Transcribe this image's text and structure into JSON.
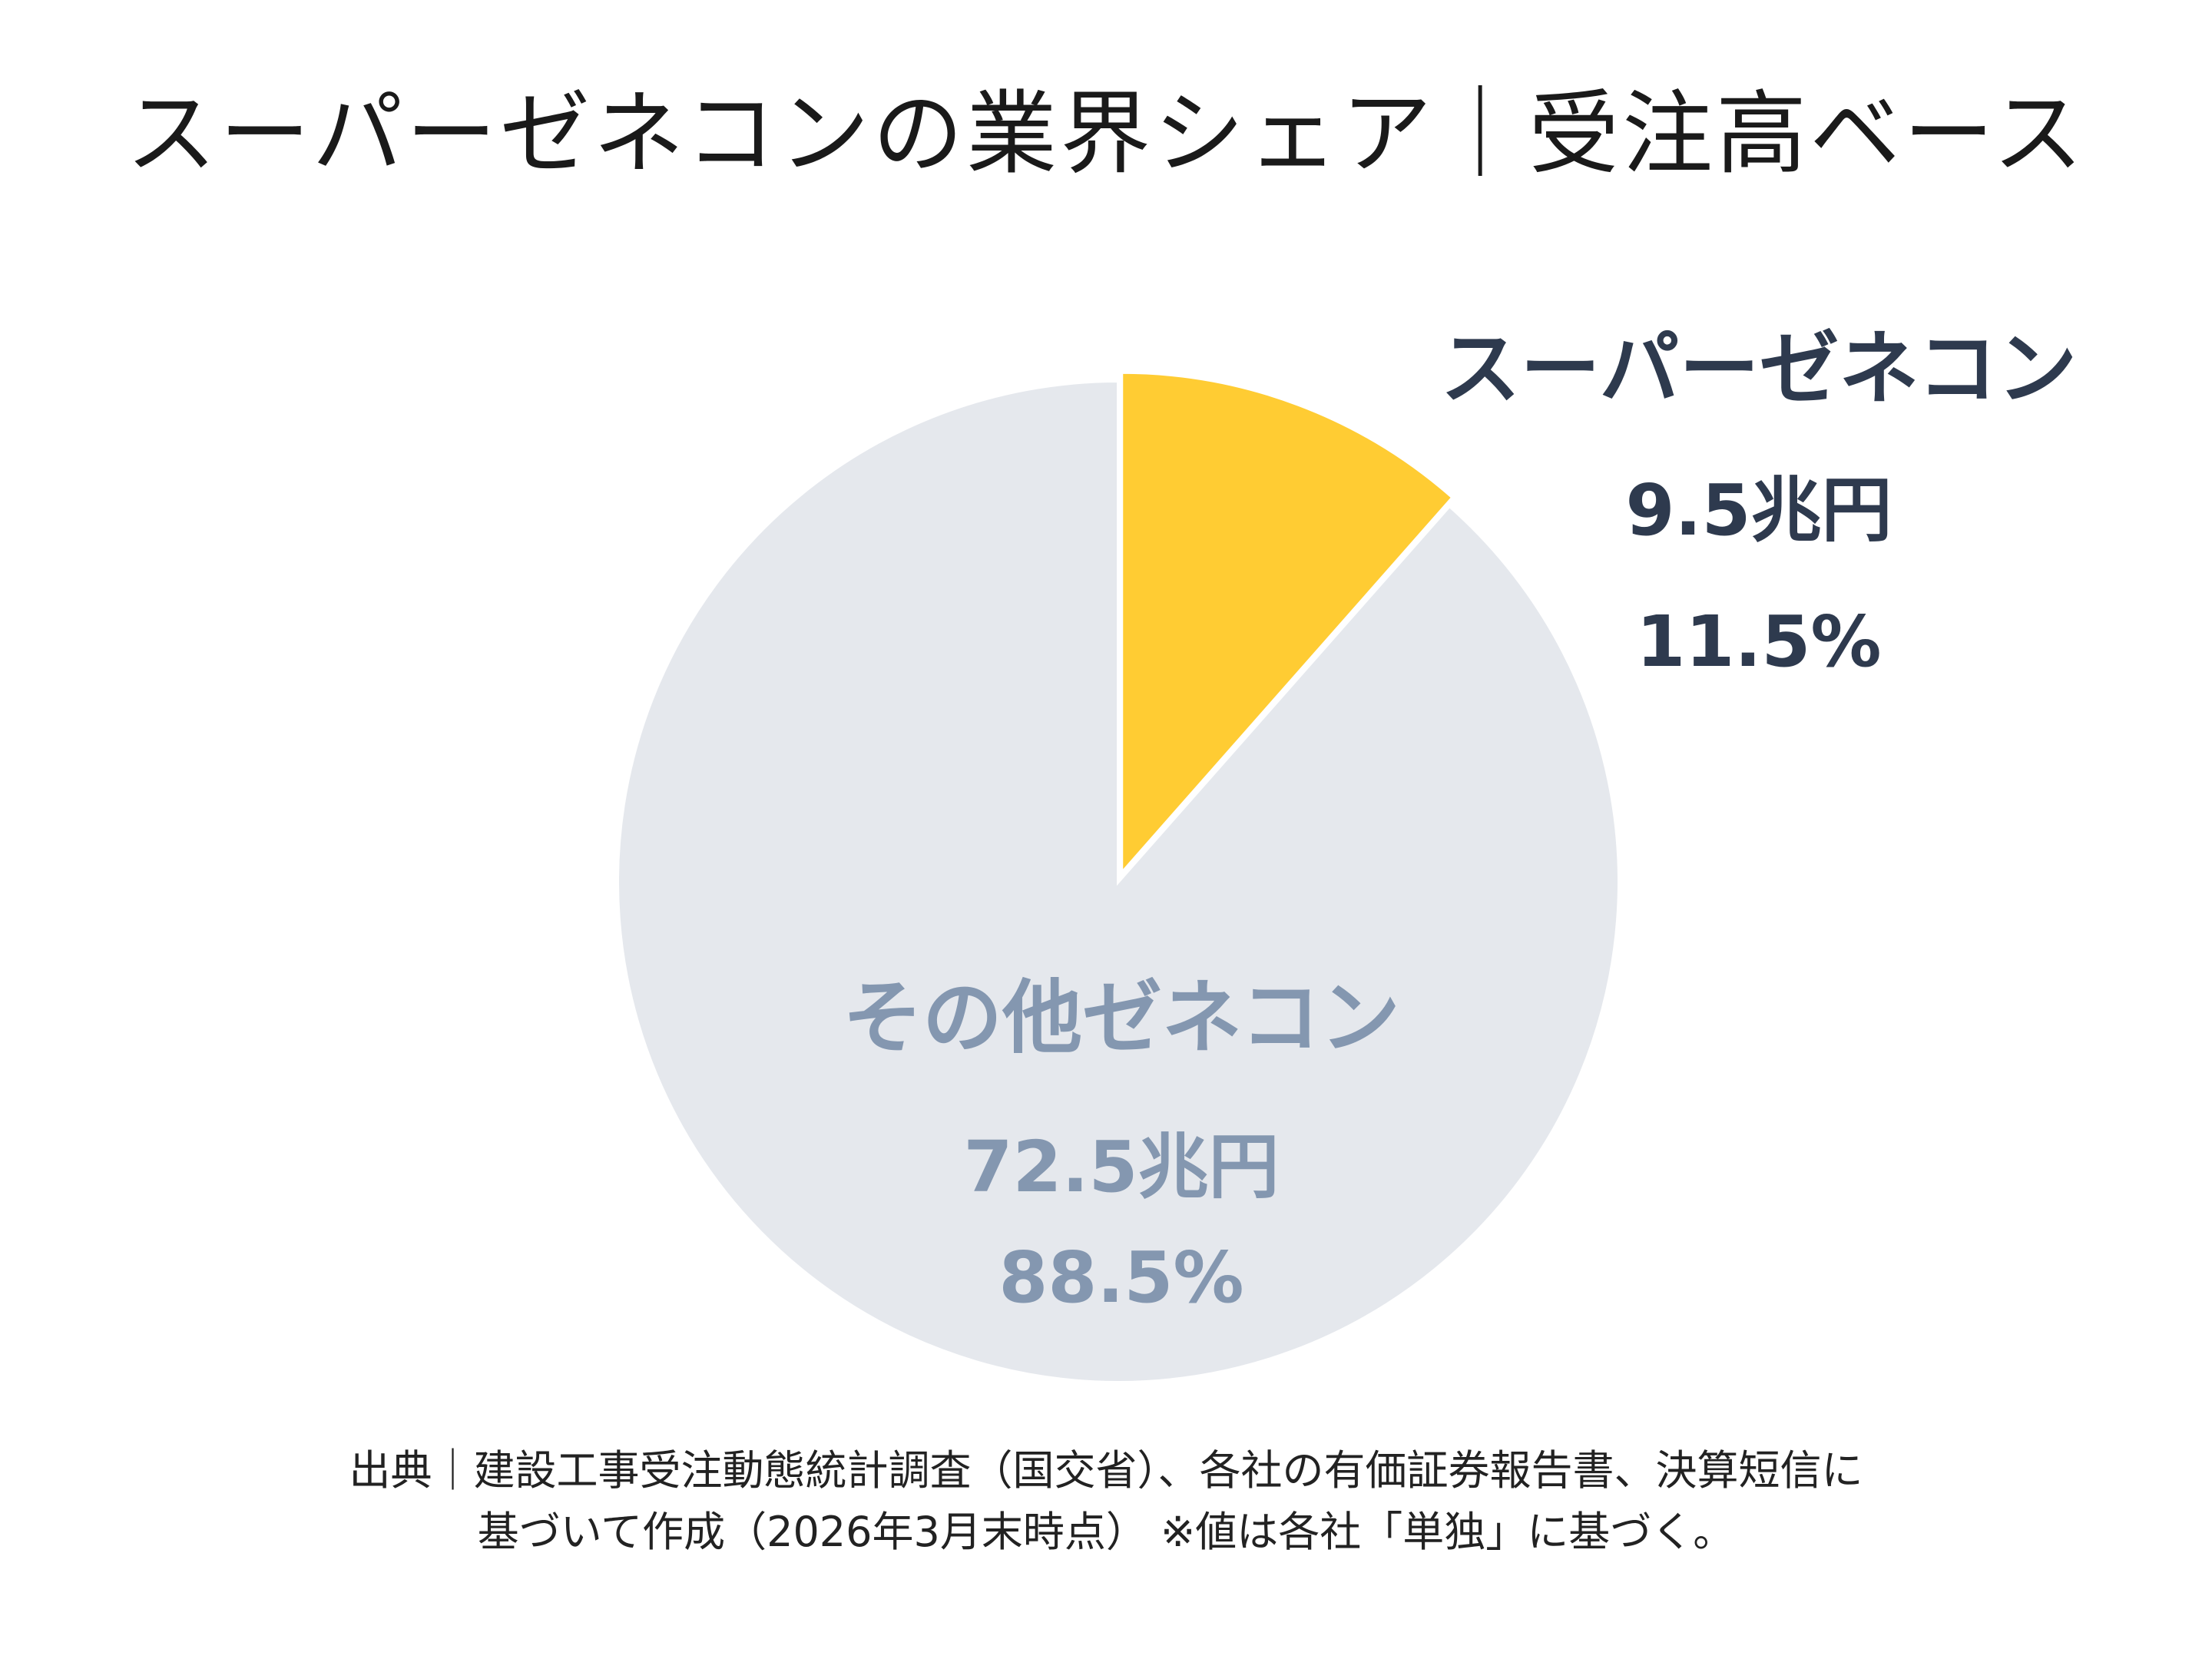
{
  "chart_data": {
    "type": "pie",
    "title": "スーパーゼネコンの業界シェア｜受注高ベース",
    "slices": [
      {
        "name": "スーパーゼネコン",
        "amount_label": "9.5兆円",
        "amount": 9.5,
        "unit": "兆円",
        "percent_label": "11.5%",
        "percent": 11.5,
        "color": "#FFCC33",
        "label_color": "#2E3A4E"
      },
      {
        "name": "その他ゼネコン",
        "amount_label": "72.5兆円",
        "amount": 72.5,
        "unit": "兆円",
        "percent_label": "88.5%",
        "percent": 88.5,
        "color": "#E5E8ED",
        "label_color": "#8497B0"
      }
    ],
    "start_angle": "12 o'clock",
    "direction": "clockwise",
    "exploded_slice": "スーパーゼネコン",
    "legend": "none"
  },
  "source": {
    "line1": "出典｜建設工事受注動態統計調査（国交省）、各社の有価証券報告書、決算短信に",
    "line2": "基づいて作成（2026年3月末時点） ※値は各社「単独」に基づく。"
  }
}
